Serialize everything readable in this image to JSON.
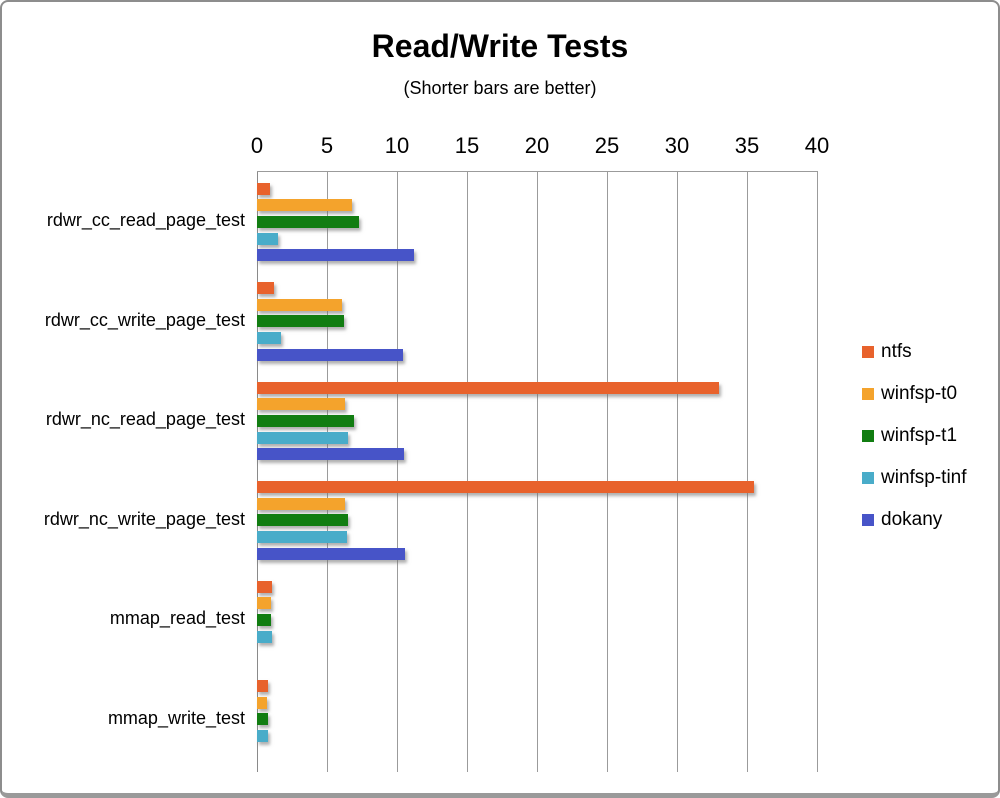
{
  "window": {
    "background": "#ffffff",
    "frame_border_color": "#8d8d8d"
  },
  "chart_data": {
    "type": "bar",
    "orientation": "horizontal",
    "title": "Read/Write Tests",
    "subtitle": "(Shorter bars are better)",
    "xlabel": "",
    "ylabel": "",
    "xlim": [
      0,
      40
    ],
    "xticks": [
      0,
      5,
      10,
      15,
      20,
      25,
      30,
      35,
      40
    ],
    "grid": true,
    "axis_position": "top",
    "legend_position": "right",
    "axis_color": "#9b9b9b",
    "categories": [
      "rdwr_cc_read_page_test",
      "rdwr_cc_write_page_test",
      "rdwr_nc_read_page_test",
      "rdwr_nc_write_page_test",
      "mmap_read_test",
      "mmap_write_test"
    ],
    "series": [
      {
        "name": "ntfs",
        "color": "#E8622C",
        "values": [
          0.9,
          1.2,
          33.0,
          35.5,
          1.1,
          0.8
        ]
      },
      {
        "name": "winfsp-t0",
        "color": "#F4A32C",
        "values": [
          6.8,
          6.1,
          6.3,
          6.3,
          1.0,
          0.7
        ]
      },
      {
        "name": "winfsp-t1",
        "color": "#117D11",
        "values": [
          7.3,
          6.2,
          6.9,
          6.5,
          1.0,
          0.8
        ]
      },
      {
        "name": "winfsp-tinf",
        "color": "#49ACC9",
        "values": [
          1.5,
          1.7,
          6.5,
          6.4,
          1.1,
          0.8
        ]
      },
      {
        "name": "dokany",
        "color": "#4754C8",
        "values": [
          11.2,
          10.4,
          10.5,
          10.6,
          0,
          0
        ]
      }
    ]
  }
}
